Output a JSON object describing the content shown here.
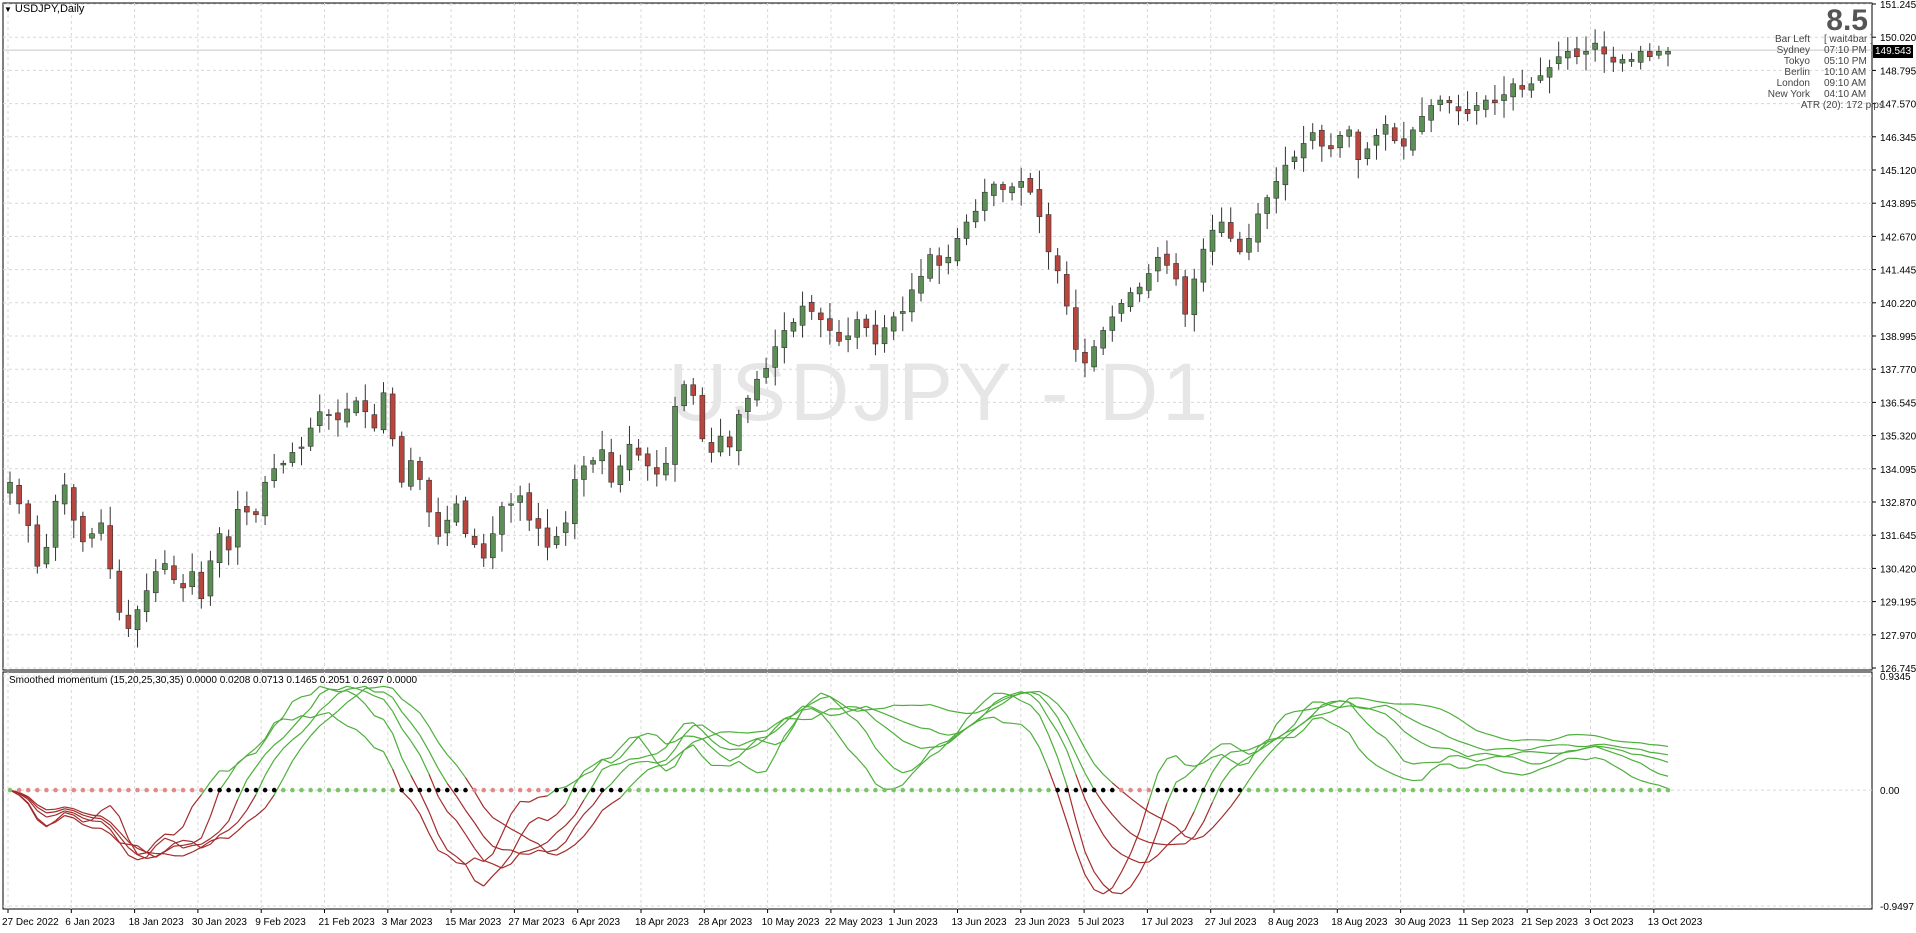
{
  "window": {
    "symbol_label": "USDJPY,Daily",
    "watermark": "USDJPY - D1"
  },
  "info_panel": {
    "big_value": "8.5",
    "rows": [
      {
        "key": "Bar Left",
        "value": "[ wait4bar ]"
      },
      {
        "key": "Sydney",
        "value": "07:10 PM"
      },
      {
        "key": "Tokyo",
        "value": "05:10 PM"
      },
      {
        "key": "Berlin",
        "value": "10:10 AM"
      },
      {
        "key": "London",
        "value": "09:10 AM"
      },
      {
        "key": "New York",
        "value": "04:10 AM"
      }
    ],
    "atr": "ATR (20): 172 pips"
  },
  "current_price": "149.543",
  "indicator": {
    "label": "Smoothed momentum (15,20,25,30,35) 0.0000 0.0208 0.0713 0.1465 0.2051 0.2697 0.0000"
  },
  "colors": {
    "bull": "#5b8f55",
    "bear": "#b8463f",
    "momentum_up": "#4caf3a",
    "momentum_down": "#a32b2b",
    "dot_up": "#7cc46a",
    "dot_down": "#e08a8a",
    "dot_cross": "#000000",
    "grid": "#d8d8d8",
    "watermark": "#e6e6e6"
  },
  "chart_data": [
    {
      "type": "candlestick",
      "title": "USDJPY,Daily",
      "ylim": [
        126.745,
        151.245
      ],
      "y_ticks": [
        "151.245",
        "150.020",
        "148.795",
        "147.570",
        "146.345",
        "145.120",
        "143.895",
        "142.670",
        "141.445",
        "140.220",
        "138.995",
        "137.770",
        "136.545",
        "135.320",
        "134.095",
        "132.870",
        "131.645",
        "130.420",
        "129.195",
        "127.970",
        "126.745"
      ],
      "x_ticks": [
        "27 Dec 2022",
        "6 Jan 2023",
        "18 Jan 2023",
        "30 Jan 2023",
        "9 Feb 2023",
        "21 Feb 2023",
        "3 Mar 2023",
        "15 Mar 2023",
        "27 Mar 2023",
        "6 Apr 2023",
        "18 Apr 2023",
        "28 Apr 2023",
        "10 May 2023",
        "22 May 2023",
        "1 Jun 2023",
        "13 Jun 2023",
        "23 Jun 2023",
        "5 Jul 2023",
        "17 Jul 2023",
        "27 Jul 2023",
        "8 Aug 2023",
        "18 Aug 2023",
        "30 Aug 2023",
        "11 Sep 2023",
        "21 Sep 2023",
        "3 Oct 2023",
        "13 Oct 2023"
      ],
      "close_path": [
        133.6,
        132.8,
        132.0,
        130.5,
        131.2,
        132.9,
        133.5,
        132.2,
        131.4,
        131.7,
        132.1,
        130.4,
        128.8,
        128.2,
        128.9,
        129.6,
        130.3,
        130.6,
        130.0,
        129.7,
        130.3,
        129.3,
        130.7,
        131.7,
        131.1,
        132.6,
        132.5,
        132.4,
        133.6,
        134.1,
        134.3,
        134.7,
        134.9,
        135.6,
        136.2,
        136.1,
        135.9,
        136.3,
        136.6,
        136.2,
        135.6,
        136.9,
        135.2,
        133.6,
        134.4,
        133.7,
        132.5,
        131.6,
        132.2,
        132.8,
        131.7,
        131.3,
        130.8,
        131.7,
        132.7,
        132.8,
        133.1,
        132.2,
        131.9,
        131.2,
        131.6,
        132.1,
        133.7,
        134.2,
        134.4,
        134.8,
        133.6,
        134.2,
        135.0,
        134.6,
        134.2,
        133.9,
        134.3,
        136.4,
        137.2,
        136.8,
        135.2,
        134.7,
        135.3,
        134.9,
        136.1,
        136.7,
        137.4,
        137.8,
        138.6,
        139.2,
        139.5,
        140.1,
        139.9,
        139.6,
        139.2,
        138.8,
        139.0,
        139.6,
        139.3,
        138.7,
        139.3,
        139.7,
        139.9,
        140.7,
        141.2,
        142.0,
        141.6,
        141.9,
        142.6,
        143.2,
        143.6,
        144.3,
        144.6,
        144.4,
        144.5,
        144.7,
        144.3,
        143.4,
        142.1,
        141.4,
        140.1,
        138.5,
        138.0,
        138.6,
        139.2,
        139.7,
        140.2,
        140.6,
        140.8,
        141.3,
        141.9,
        141.6,
        141.1,
        139.8,
        141.1,
        142.2,
        142.9,
        143.2,
        142.6,
        142.1,
        142.6,
        143.5,
        144.1,
        144.7,
        145.3,
        145.6,
        146.1,
        146.5,
        146.0,
        145.9,
        146.4,
        146.6,
        145.5,
        145.9,
        146.4,
        146.8,
        146.2,
        146.0,
        146.6,
        147.1,
        147.5,
        147.7,
        147.6,
        147.3,
        147.2,
        147.5,
        147.7,
        147.6,
        147.9,
        148.3,
        148.1,
        148.3,
        148.6,
        148.9,
        149.3,
        149.5,
        149.3,
        149.5,
        149.8,
        149.4,
        149.1,
        149.2,
        149.2,
        149.5,
        149.3,
        149.5,
        149.5
      ],
      "momentum_series_names": [
        "15",
        "20",
        "25",
        "30",
        "35"
      ],
      "momentum_ylim": [
        -0.9497,
        0.9345
      ],
      "momentum_y_ticks": [
        "0.9345",
        "0.00",
        "-0.9497"
      ]
    }
  ]
}
